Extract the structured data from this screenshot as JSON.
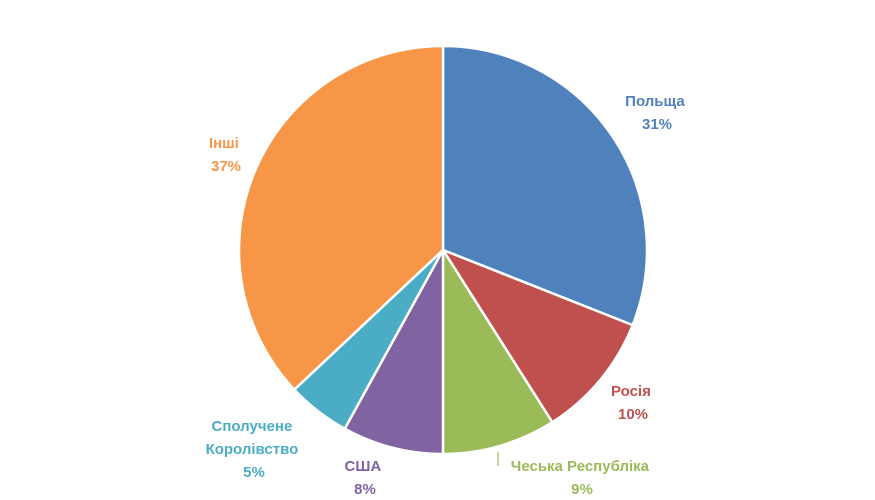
{
  "chart_data": {
    "type": "pie",
    "title": "",
    "start_angle_deg": 0,
    "direction": "clockwise",
    "legend": "none",
    "slices": [
      {
        "label": "Польща",
        "value": 31,
        "percent_label": "31%",
        "color": "#4F81BD"
      },
      {
        "label": "Росія",
        "value": 10,
        "percent_label": "10%",
        "color": "#C0504D"
      },
      {
        "label": "Чеська Республіка",
        "value": 9,
        "percent_label": "9%",
        "color": "#9BBB59"
      },
      {
        "label": "США",
        "value": 8,
        "percent_label": "8%",
        "color": "#8064A2"
      },
      {
        "label": "Сполучене Королівство",
        "value": 5,
        "percent_label": "5%",
        "color": "#4BACC6"
      },
      {
        "label": "Інші",
        "value": 37,
        "percent_label": "37%",
        "color": "#F79646"
      }
    ]
  }
}
